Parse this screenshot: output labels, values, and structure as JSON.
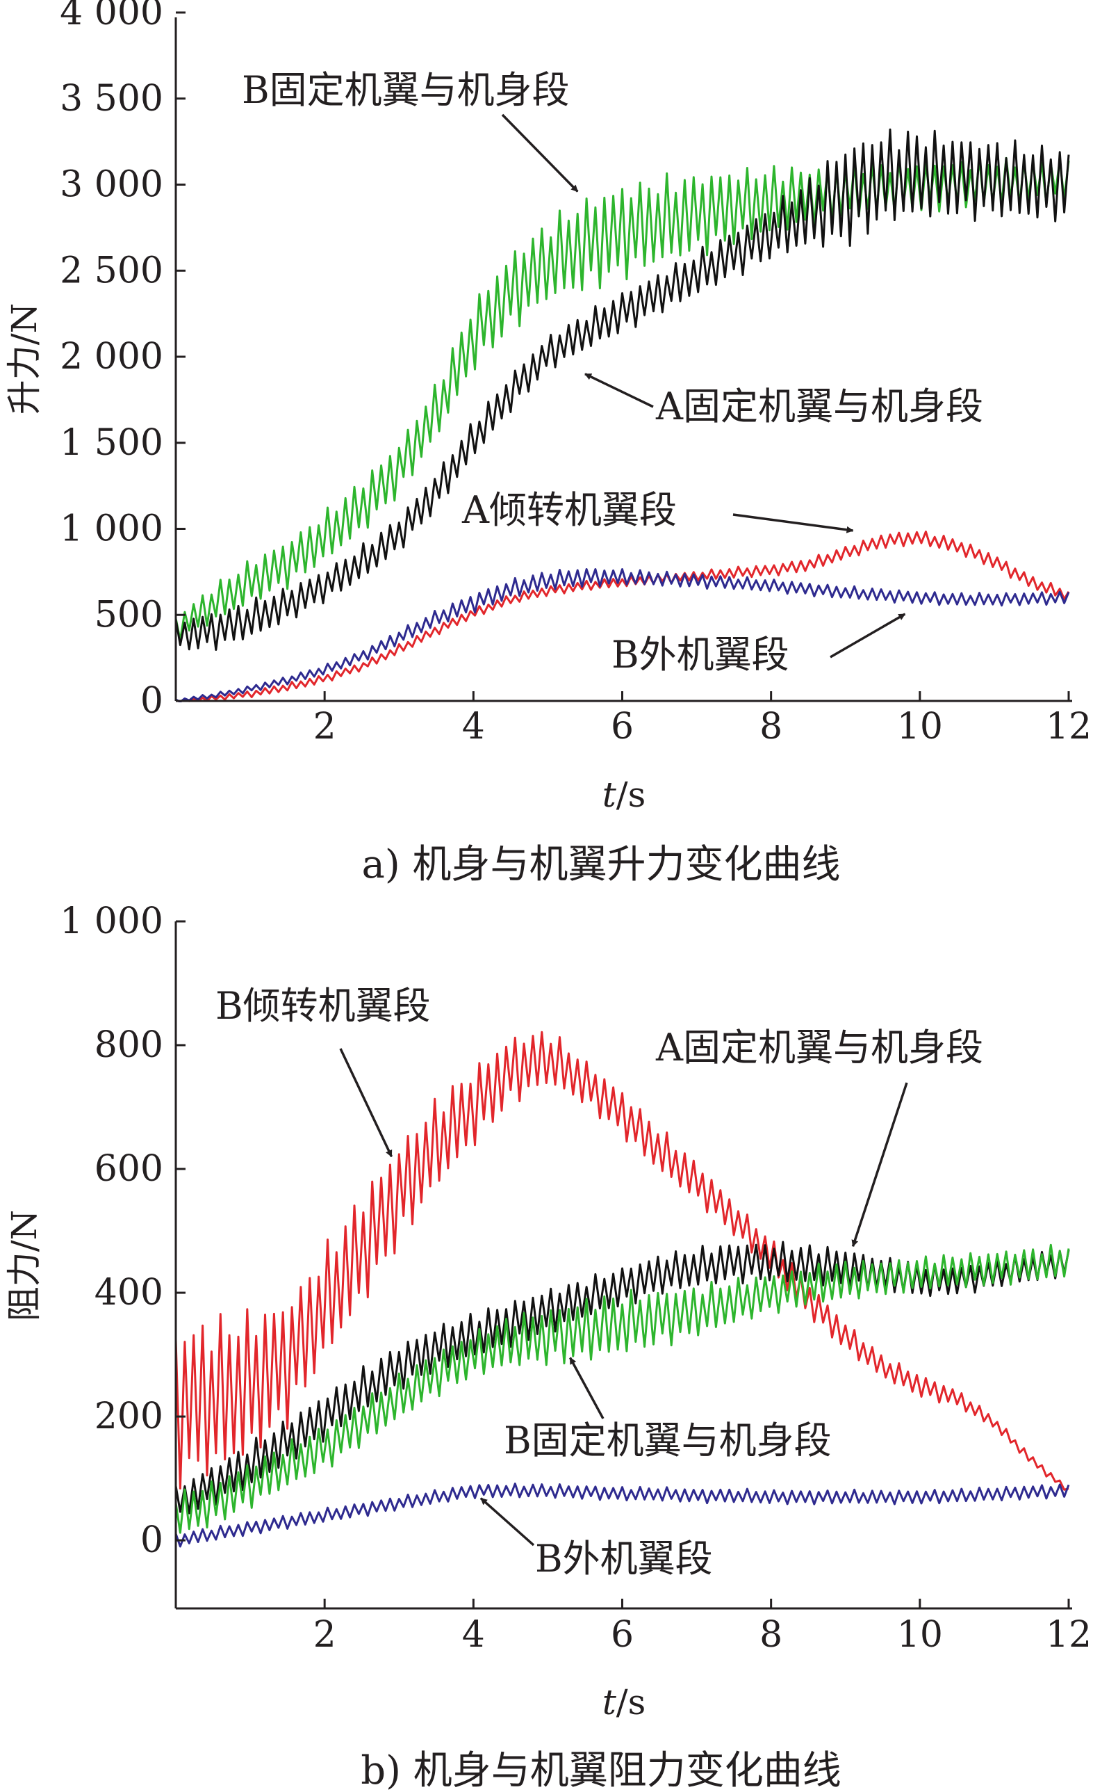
{
  "chart_data": [
    {
      "type": "line",
      "caption": "a) 机身与机翼升力变化曲线",
      "xlabel_italic": "t",
      "xlabel_unit": "/s",
      "ylabel": "升力/N",
      "xlim": [
        0,
        12
      ],
      "ylim": [
        0,
        4000
      ],
      "x_ticks": [
        2,
        4,
        6,
        8,
        10,
        12
      ],
      "y_ticks": [
        0,
        500,
        1000,
        1500,
        2000,
        2500,
        3000,
        3500,
        4000
      ],
      "y_tick_labels": [
        "0",
        "500",
        "1 000",
        "1 500",
        "2 000",
        "2 500",
        "3 000",
        "3 500",
        "4 000"
      ],
      "oscillation_period_s": 0.12,
      "series": [
        {
          "name": "B固定机翼与机身段",
          "color": "#2db52d",
          "x": [
            0,
            0.5,
            1,
            1.5,
            2,
            2.5,
            3,
            3.5,
            4,
            4.5,
            5,
            5.5,
            6,
            6.5,
            7,
            7.5,
            8,
            8.5,
            9,
            9.5,
            10,
            10.5,
            11,
            11.5,
            12
          ],
          "y": [
            420,
            560,
            690,
            800,
            950,
            1130,
            1350,
            1680,
            2120,
            2380,
            2550,
            2650,
            2730,
            2780,
            2830,
            2870,
            2900,
            2930,
            2960,
            2980,
            2990,
            3000,
            3010,
            3020,
            3030
          ],
          "amplitude": [
            80,
            120,
            140,
            150,
            160,
            170,
            170,
            180,
            220,
            250,
            260,
            300,
            300,
            280,
            260,
            240,
            220,
            190,
            170,
            160,
            160,
            150,
            150,
            140,
            140
          ]
        },
        {
          "name": "A固定机翼与机身段",
          "color": "#111111",
          "x": [
            0,
            0.5,
            1,
            1.5,
            2,
            2.5,
            3,
            3.5,
            4,
            4.5,
            5,
            5.5,
            6,
            6.5,
            7,
            7.5,
            8,
            8.5,
            9,
            9.5,
            10,
            10.5,
            11,
            11.5,
            12
          ],
          "y": [
            380,
            410,
            470,
            560,
            670,
            800,
            970,
            1220,
            1520,
            1790,
            2020,
            2140,
            2260,
            2370,
            2480,
            2600,
            2720,
            2830,
            2940,
            3040,
            3060,
            3050,
            3030,
            3010,
            3000
          ],
          "amplitude": [
            100,
            120,
            120,
            110,
            100,
            110,
            110,
            120,
            120,
            120,
            110,
            120,
            130,
            130,
            140,
            150,
            170,
            220,
            330,
            300,
            280,
            260,
            250,
            240,
            230
          ]
        },
        {
          "name": "A倾转机翼段",
          "color": "#e2262b",
          "x": [
            0,
            0.5,
            1,
            1.5,
            2,
            2.5,
            3,
            3.5,
            4,
            4.5,
            5,
            5.5,
            6,
            6.5,
            7,
            7.5,
            8,
            8.5,
            9,
            9.5,
            10,
            10.5,
            11,
            11.5,
            12
          ],
          "y": [
            0,
            15,
            40,
            80,
            130,
            200,
            300,
            410,
            510,
            590,
            640,
            670,
            690,
            710,
            725,
            745,
            760,
            790,
            860,
            930,
            950,
            900,
            810,
            690,
            610
          ],
          "amplitude": [
            5,
            15,
            20,
            25,
            25,
            25,
            30,
            30,
            30,
            30,
            30,
            30,
            30,
            30,
            30,
            35,
            35,
            40,
            40,
            45,
            45,
            45,
            45,
            40,
            35
          ]
        },
        {
          "name": "B外机翼段",
          "color": "#2e2a8f",
          "x": [
            0,
            0.5,
            1,
            1.5,
            2,
            2.5,
            3,
            3.5,
            4,
            4.5,
            5,
            5.5,
            6,
            6.5,
            7,
            7.5,
            8,
            8.5,
            9,
            9.5,
            10,
            10.5,
            11,
            11.5,
            12
          ],
          "y": [
            0,
            30,
            70,
            120,
            180,
            260,
            370,
            480,
            570,
            650,
            700,
            720,
            720,
            710,
            700,
            685,
            670,
            650,
            630,
            615,
            600,
            590,
            590,
            595,
            600
          ],
          "amplitude": [
            10,
            15,
            20,
            25,
            30,
            35,
            45,
            50,
            60,
            60,
            60,
            60,
            50,
            45,
            45,
            40,
            40,
            40,
            40,
            40,
            40,
            40,
            40,
            40,
            40
          ]
        }
      ],
      "annotations": [
        {
          "label": "B固定机翼与机身段",
          "target": [
            5.4,
            2960
          ]
        },
        {
          "label": "A固定机翼与机身段",
          "target": [
            5.5,
            1900
          ]
        },
        {
          "label": "A倾转机翼段",
          "target": [
            9.1,
            990
          ]
        },
        {
          "label": "B外机翼段",
          "target": [
            9.8,
            505
          ]
        }
      ]
    },
    {
      "type": "line",
      "caption": "b) 机身与机翼阻力变化曲线",
      "xlabel_italic": "t",
      "xlabel_unit": "/s",
      "ylabel": "阻力/N",
      "xlim": [
        0,
        12
      ],
      "ylim": [
        -110,
        1000
      ],
      "x_ticks": [
        2,
        4,
        6,
        8,
        10,
        12
      ],
      "y_ticks": [
        0,
        200,
        400,
        600,
        800,
        1000
      ],
      "y_tick_labels": [
        "0",
        "200",
        "400",
        "600",
        "800",
        "1 000"
      ],
      "oscillation_period_s": 0.12,
      "series": [
        {
          "name": "B倾转机翼段",
          "color": "#e2262b",
          "x": [
            0,
            0.5,
            1,
            1.5,
            2,
            2.5,
            3,
            3.5,
            4,
            4.5,
            5,
            5.5,
            6,
            6.5,
            7,
            7.5,
            8,
            8.5,
            9,
            9.5,
            10,
            10.5,
            11,
            11.5,
            12
          ],
          "y": [
            220,
            230,
            250,
            290,
            380,
            470,
            560,
            640,
            700,
            760,
            780,
            740,
            690,
            630,
            580,
            520,
            460,
            390,
            330,
            280,
            250,
            230,
            190,
            130,
            80
          ],
          "amplitude": [
            140,
            140,
            130,
            110,
            100,
            100,
            90,
            80,
            70,
            60,
            50,
            40,
            40,
            40,
            35,
            30,
            30,
            30,
            25,
            20,
            20,
            15,
            10,
            8,
            5
          ]
        },
        {
          "name": "A固定机翼与机身段",
          "color": "#111111",
          "x": [
            0,
            0.5,
            1,
            1.5,
            2,
            2.5,
            3,
            3.5,
            4,
            4.5,
            5,
            5.5,
            6,
            6.5,
            7,
            7.5,
            8,
            8.5,
            9,
            9.5,
            10,
            10.5,
            11,
            11.5,
            12
          ],
          "y": [
            60,
            90,
            120,
            160,
            200,
            240,
            280,
            310,
            330,
            350,
            370,
            390,
            410,
            430,
            440,
            450,
            450,
            445,
            440,
            430,
            420,
            420,
            430,
            440,
            450
          ],
          "amplitude": [
            30,
            35,
            40,
            40,
            40,
            40,
            40,
            40,
            40,
            40,
            40,
            35,
            35,
            35,
            35,
            35,
            35,
            35,
            35,
            30,
            30,
            25,
            25,
            25,
            25
          ]
        },
        {
          "name": "B固定机翼与机身段",
          "color": "#2db52d",
          "x": [
            0,
            0.5,
            1,
            1.5,
            2,
            2.5,
            3,
            3.5,
            4,
            4.5,
            5,
            5.5,
            6,
            6.5,
            7,
            7.5,
            8,
            8.5,
            9,
            9.5,
            10,
            10.5,
            11,
            11.5,
            12
          ],
          "y": [
            40,
            60,
            90,
            120,
            150,
            190,
            230,
            270,
            300,
            320,
            330,
            340,
            350,
            360,
            370,
            385,
            400,
            410,
            420,
            425,
            430,
            435,
            440,
            445,
            450
          ],
          "amplitude": [
            40,
            40,
            40,
            40,
            40,
            40,
            40,
            40,
            40,
            45,
            50,
            55,
            55,
            50,
            45,
            40,
            35,
            35,
            35,
            30,
            30,
            30,
            30,
            30,
            30
          ]
        },
        {
          "name": "B外机翼段",
          "color": "#2e2a8f",
          "x": [
            0,
            0.5,
            1,
            1.5,
            2,
            2.5,
            3,
            3.5,
            4,
            4.5,
            5,
            5.5,
            6,
            6.5,
            7,
            7.5,
            8,
            8.5,
            9,
            9.5,
            10,
            10.5,
            11,
            11.5,
            12
          ],
          "y": [
            0,
            10,
            20,
            30,
            40,
            50,
            60,
            70,
            80,
            80,
            80,
            78,
            75,
            75,
            72,
            72,
            70,
            70,
            70,
            70,
            70,
            72,
            75,
            78,
            80
          ],
          "amplitude": [
            12,
            12,
            12,
            12,
            12,
            12,
            12,
            12,
            12,
            12,
            12,
            12,
            12,
            12,
            12,
            12,
            12,
            12,
            12,
            12,
            12,
            12,
            12,
            12,
            12
          ]
        }
      ],
      "annotations": [
        {
          "label": "B倾转机翼段",
          "target": [
            2.9,
            620
          ]
        },
        {
          "label": "A固定机翼与机身段",
          "target": [
            9.1,
            475
          ]
        },
        {
          "label": "B固定机翼与机身段",
          "target": [
            5.3,
            295
          ]
        },
        {
          "label": "B外机翼段",
          "target": [
            4.1,
            68
          ]
        }
      ]
    }
  ]
}
